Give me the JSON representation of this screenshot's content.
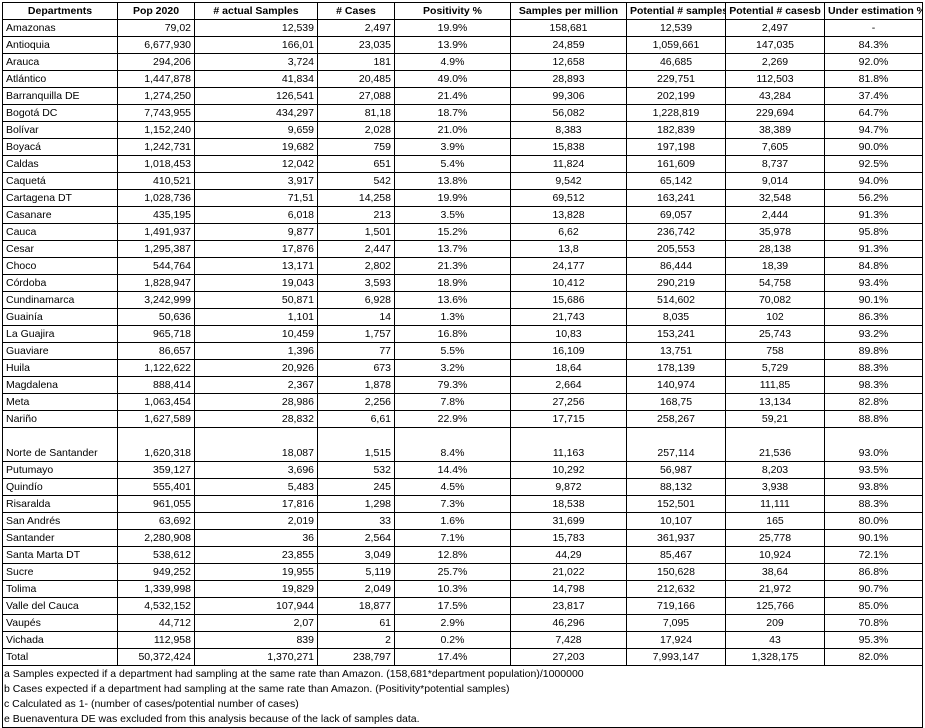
{
  "headers": [
    "Departments",
    "Pop 2020",
    "# actual Samples",
    "# Cases",
    "Positivity %",
    "Samples per million",
    "Potential # samplesa",
    "Potential # casesb",
    "Under estimation %c"
  ],
  "rows": [
    [
      "Amazonas",
      "79,02",
      "12,539",
      "2,497",
      "19.9%",
      "158,681",
      "12,539",
      "2,497",
      "-"
    ],
    [
      "Antioquia",
      "6,677,930",
      "166,01",
      "23,035",
      "13.9%",
      "24,859",
      "1,059,661",
      "147,035",
      "84.3%"
    ],
    [
      "Arauca",
      "294,206",
      "3,724",
      "181",
      "4.9%",
      "12,658",
      "46,685",
      "2,269",
      "92.0%"
    ],
    [
      "Atlántico",
      "1,447,878",
      "41,834",
      "20,485",
      "49.0%",
      "28,893",
      "229,751",
      "112,503",
      "81.8%"
    ],
    [
      "Barranquilla DE",
      "1,274,250",
      "126,541",
      "27,088",
      "21.4%",
      "99,306",
      "202,199",
      "43,284",
      "37.4%"
    ],
    [
      "Bogotá DC",
      "7,743,955",
      "434,297",
      "81,18",
      "18.7%",
      "56,082",
      "1,228,819",
      "229,694",
      "64.7%"
    ],
    [
      "Bolívar",
      "1,152,240",
      "9,659",
      "2,028",
      "21.0%",
      "8,383",
      "182,839",
      "38,389",
      "94.7%"
    ],
    [
      "Boyacá",
      "1,242,731",
      "19,682",
      "759",
      "3.9%",
      "15,838",
      "197,198",
      "7,605",
      "90.0%"
    ],
    [
      "Caldas",
      "1,018,453",
      "12,042",
      "651",
      "5.4%",
      "11,824",
      "161,609",
      "8,737",
      "92.5%"
    ],
    [
      "Caquetá",
      "410,521",
      "3,917",
      "542",
      "13.8%",
      "9,542",
      "65,142",
      "9,014",
      "94.0%"
    ],
    [
      "Cartagena DT",
      "1,028,736",
      "71,51",
      "14,258",
      "19.9%",
      "69,512",
      "163,241",
      "32,548",
      "56.2%"
    ],
    [
      "Casanare",
      "435,195",
      "6,018",
      "213",
      "3.5%",
      "13,828",
      "69,057",
      "2,444",
      "91.3%"
    ],
    [
      "Cauca",
      "1,491,937",
      "9,877",
      "1,501",
      "15.2%",
      "6,62",
      "236,742",
      "35,978",
      "95.8%"
    ],
    [
      "Cesar",
      "1,295,387",
      "17,876",
      "2,447",
      "13.7%",
      "13,8",
      "205,553",
      "28,138",
      "91.3%"
    ],
    [
      "Choco",
      "544,764",
      "13,171",
      "2,802",
      "21.3%",
      "24,177",
      "86,444",
      "18,39",
      "84.8%"
    ],
    [
      "Córdoba",
      "1,828,947",
      "19,043",
      "3,593",
      "18.9%",
      "10,412",
      "290,219",
      "54,758",
      "93.4%"
    ],
    [
      "Cundinamarca",
      "3,242,999",
      "50,871",
      "6,928",
      "13.6%",
      "15,686",
      "514,602",
      "70,082",
      "90.1%"
    ],
    [
      "Guainía",
      "50,636",
      "1,101",
      "14",
      "1.3%",
      "21,743",
      "8,035",
      "102",
      "86.3%"
    ],
    [
      "La Guajira",
      "965,718",
      "10,459",
      "1,757",
      "16.8%",
      "10,83",
      "153,241",
      "25,743",
      "93.2%"
    ],
    [
      "Guaviare",
      "86,657",
      "1,396",
      "77",
      "5.5%",
      "16,109",
      "13,751",
      "758",
      "89.8%"
    ],
    [
      "Huila",
      "1,122,622",
      "20,926",
      "673",
      "3.2%",
      "18,64",
      "178,139",
      "5,729",
      "88.3%"
    ],
    [
      "Magdalena",
      "888,414",
      "2,367",
      "1,878",
      "79.3%",
      "2,664",
      "140,974",
      "111,85",
      "98.3%"
    ],
    [
      "Meta",
      "1,063,454",
      "28,986",
      "2,256",
      "7.8%",
      "27,256",
      "168,75",
      "13,134",
      "82.8%"
    ],
    [
      "Nariño",
      "1,627,589",
      "28,832",
      "6,61",
      "22.9%",
      "17,715",
      "258,267",
      "59,21",
      "88.8%"
    ],
    [
      "Norte de Santander",
      "1,620,318",
      "18,087",
      "1,515",
      "8.4%",
      "11,163",
      "257,114",
      "21,536",
      "93.0%"
    ],
    [
      "Putumayo",
      "359,127",
      "3,696",
      "532",
      "14.4%",
      "10,292",
      "56,987",
      "8,203",
      "93.5%"
    ],
    [
      "Quindío",
      "555,401",
      "5,483",
      "245",
      "4.5%",
      "9,872",
      "88,132",
      "3,938",
      "93.8%"
    ],
    [
      "Risaralda",
      "961,055",
      "17,816",
      "1,298",
      "7.3%",
      "18,538",
      "152,501",
      "11,111",
      "88.3%"
    ],
    [
      "San Andrés",
      "63,692",
      "2,019",
      "33",
      "1.6%",
      "31,699",
      "10,107",
      "165",
      "80.0%"
    ],
    [
      "Santander",
      "2,280,908",
      "36",
      "2,564",
      "7.1%",
      "15,783",
      "361,937",
      "25,778",
      "90.1%"
    ],
    [
      "Santa Marta DT",
      "538,612",
      "23,855",
      "3,049",
      "12.8%",
      "44,29",
      "85,467",
      "10,924",
      "72.1%"
    ],
    [
      "Sucre",
      "949,252",
      "19,955",
      "5,119",
      "25.7%",
      "21,022",
      "150,628",
      "38,64",
      "86.8%"
    ],
    [
      "Tolima",
      "1,339,998",
      "19,829",
      "2,049",
      "10.3%",
      "14,798",
      "212,632",
      "21,972",
      "90.7%"
    ],
    [
      "Valle del Cauca",
      "4,532,152",
      "107,944",
      "18,877",
      "17.5%",
      "23,817",
      "719,166",
      "125,766",
      "85.0%"
    ],
    [
      "Vaupés",
      "44,712",
      "2,07",
      "61",
      "2.9%",
      "46,296",
      "7,095",
      "209",
      "70.8%"
    ],
    [
      "Vichada",
      "112,958",
      "839",
      "2",
      "0.2%",
      "7,428",
      "17,924",
      "43",
      "95.3%"
    ],
    [
      "Total",
      "50,372,424",
      "1,370,271",
      "238,797",
      "17.4%",
      "27,203",
      "7,993,147",
      "1,328,175",
      "82.0%"
    ]
  ],
  "notes": [
    "a Samples expected if a department had sampling at the same rate than Amazon. (158,681*department population)/1000000",
    "b Cases expected if a department had sampling at the same rate than Amazon. (Positivity*potential samples)",
    "c Calculated as 1- (number of cases/potential number of cases)",
    "e Buenaventura DE was excluded from this analysis because of the lack of samples data."
  ]
}
